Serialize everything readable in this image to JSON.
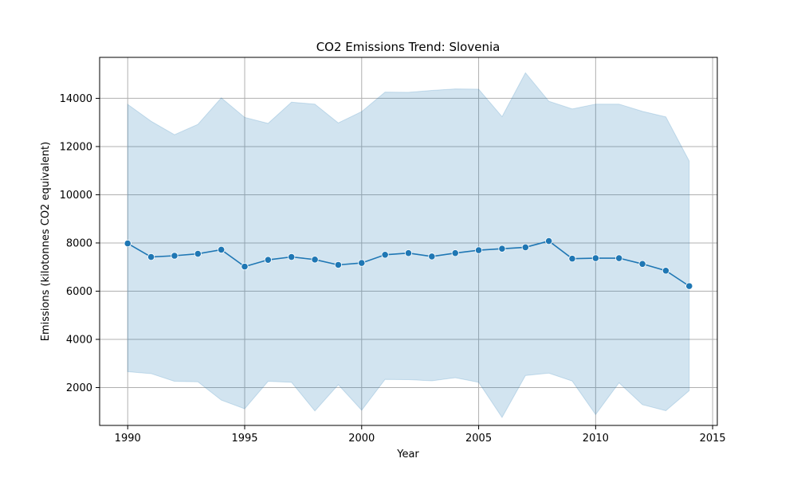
{
  "chart_data": {
    "type": "line",
    "title": "CO2 Emissions Trend: Slovenia",
    "xlabel": "Year",
    "ylabel": "Emissions (kilotonnes CO2 equivalent)",
    "xlim": [
      1988.8,
      2015.2
    ],
    "ylim": [
      430,
      15700
    ],
    "xticks": [
      1990,
      1995,
      2000,
      2005,
      2010,
      2015
    ],
    "yticks": [
      2000,
      4000,
      6000,
      8000,
      10000,
      12000,
      14000
    ],
    "grid": true,
    "colors": {
      "line": "#1f77b4",
      "band": "#1f77b4",
      "grid": "#b0b0b0"
    },
    "series": [
      {
        "x": [
          1990,
          1991,
          1992,
          1993,
          1994,
          1995,
          1996,
          1997,
          1998,
          1999,
          2000,
          2001,
          2002,
          2003,
          2004,
          2005,
          2006,
          2007,
          2008,
          2009,
          2010,
          2011,
          2012,
          2013,
          2014
        ],
        "values": [
          7980,
          7420,
          7470,
          7550,
          7720,
          7020,
          7300,
          7420,
          7310,
          7090,
          7170,
          7510,
          7580,
          7440,
          7580,
          7700,
          7760,
          7820,
          8080,
          7350,
          7370,
          7370,
          7130,
          6850,
          6210
        ],
        "band_upper": [
          13750,
          13050,
          12490,
          12920,
          14020,
          13210,
          12960,
          13840,
          13760,
          12980,
          13450,
          14260,
          14250,
          14330,
          14390,
          14380,
          13240,
          15060,
          13880,
          13560,
          13760,
          13760,
          13460,
          13230,
          11400
        ],
        "band_lower": [
          2660,
          2580,
          2260,
          2240,
          1480,
          1120,
          2260,
          2220,
          1030,
          2120,
          1060,
          2340,
          2330,
          2280,
          2410,
          2220,
          760,
          2500,
          2600,
          2270,
          880,
          2200,
          1290,
          1040,
          1870
        ]
      }
    ]
  }
}
